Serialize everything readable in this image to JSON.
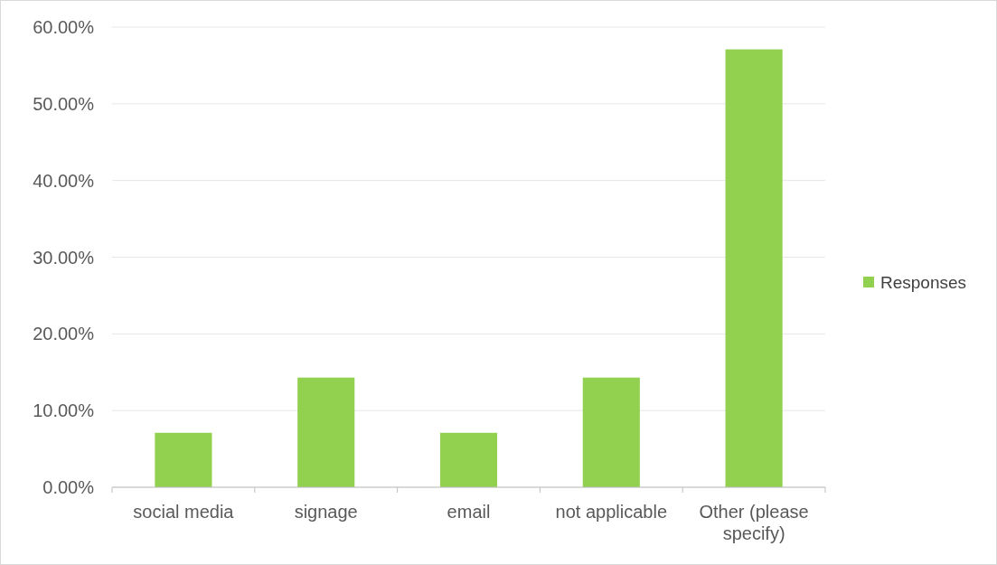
{
  "chart_data": {
    "type": "bar",
    "categories": [
      "social media",
      "signage",
      "email",
      "not applicable",
      "Other (please specify)"
    ],
    "series": [
      {
        "name": "Responses",
        "color": "#92d050",
        "values": [
          7.1,
          14.3,
          7.1,
          14.3,
          57.1
        ]
      }
    ],
    "ylim": [
      0,
      60
    ],
    "yticks": [
      {
        "value": 0,
        "label": "0.00%"
      },
      {
        "value": 10,
        "label": "10.00%"
      },
      {
        "value": 20,
        "label": "20.00%"
      },
      {
        "value": 30,
        "label": "30.00%"
      },
      {
        "value": 40,
        "label": "40.00%"
      },
      {
        "value": 50,
        "label": "50.00%"
      },
      {
        "value": 60,
        "label": "60.00%"
      }
    ],
    "grid": "y",
    "legend": "right"
  }
}
